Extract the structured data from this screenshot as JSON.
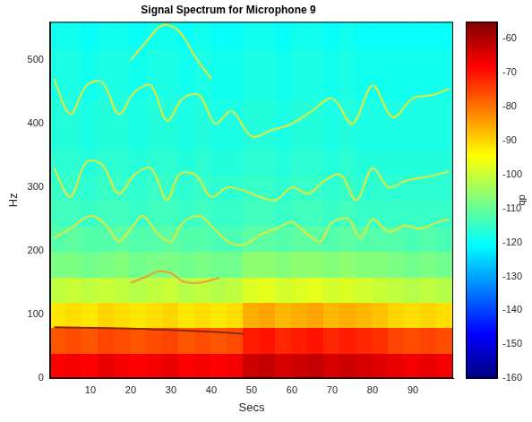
{
  "chart_data": {
    "type": "heatmap",
    "title": "Signal Spectrum for Microphone 9",
    "x_label": "Secs",
    "y_label": "Hz",
    "xlim": [
      0,
      100
    ],
    "xticks": [
      10,
      20,
      30,
      40,
      50,
      60,
      70,
      80,
      90
    ],
    "ylim": [
      0,
      560
    ],
    "yticks": [
      0,
      100,
      200,
      300,
      400,
      500
    ],
    "grid": false,
    "heatmap": {
      "x_edges": [
        0,
        4,
        8,
        12,
        16,
        20,
        24,
        28,
        32,
        36,
        40,
        44,
        48,
        52,
        56,
        60,
        64,
        68,
        72,
        76,
        80,
        84,
        88,
        92,
        96,
        100
      ],
      "y_edges": [
        0,
        40,
        80,
        120,
        160,
        200,
        240,
        280,
        320,
        360,
        400,
        440,
        480,
        520,
        560
      ],
      "cells": [
        [
          -68,
          -67,
          -68,
          -66,
          -67,
          -68,
          -67,
          -66,
          -68,
          -67,
          -68,
          -67,
          -63,
          -62,
          -64,
          -63,
          -62,
          -64,
          -63,
          -64,
          -65,
          -66,
          -67,
          -66,
          -67
        ],
        [
          -77,
          -76,
          -77,
          -75,
          -76,
          -77,
          -76,
          -75,
          -77,
          -76,
          -77,
          -76,
          -71,
          -70,
          -72,
          -71,
          -70,
          -72,
          -71,
          -72,
          -73,
          -75,
          -76,
          -75,
          -76
        ],
        [
          -92,
          -91,
          -92,
          -90,
          -91,
          -92,
          -91,
          -90,
          -92,
          -91,
          -92,
          -91,
          -86,
          -85,
          -87,
          -86,
          -85,
          -87,
          -86,
          -87,
          -88,
          -90,
          -91,
          -90,
          -91
        ],
        [
          -101,
          -100,
          -101,
          -100,
          -101,
          -102,
          -101,
          -100,
          -102,
          -101,
          -102,
          -101,
          -98,
          -97,
          -99,
          -98,
          -97,
          -99,
          -98,
          -99,
          -100,
          -101,
          -102,
          -101,
          -102
        ],
        [
          -108,
          -108,
          -109,
          -108,
          -107,
          -109,
          -108,
          -108,
          -109,
          -108,
          -109,
          -109,
          -106,
          -106,
          -107,
          -106,
          -106,
          -107,
          -106,
          -107,
          -107,
          -108,
          -109,
          -108,
          -109
        ],
        [
          -112,
          -111,
          -112,
          -112,
          -111,
          -112,
          -112,
          -111,
          -112,
          -112,
          -113,
          -113,
          -111,
          -111,
          -112,
          -111,
          -111,
          -112,
          -111,
          -112,
          -112,
          -112,
          -113,
          -112,
          -113
        ],
        [
          -114,
          -114,
          -115,
          -114,
          -114,
          -115,
          -114,
          -114,
          -115,
          -114,
          -115,
          -115,
          -114,
          -114,
          -115,
          -114,
          -114,
          -115,
          -114,
          -115,
          -115,
          -115,
          -115,
          -115,
          -115
        ],
        [
          -115,
          -115,
          -116,
          -115,
          -115,
          -116,
          -115,
          -115,
          -116,
          -115,
          -116,
          -116,
          -115,
          -115,
          -116,
          -115,
          -115,
          -116,
          -115,
          -116,
          -116,
          -116,
          -116,
          -116,
          -116
        ],
        [
          -116,
          -116,
          -117,
          -116,
          -116,
          -117,
          -116,
          -116,
          -117,
          -116,
          -117,
          -117,
          -116,
          -116,
          -117,
          -116,
          -116,
          -117,
          -116,
          -117,
          -117,
          -117,
          -117,
          -117,
          -117
        ],
        [
          -117,
          -117,
          -118,
          -117,
          -117,
          -118,
          -117,
          -117,
          -118,
          -117,
          -118,
          -118,
          -117,
          -117,
          -118,
          -117,
          -117,
          -118,
          -117,
          -118,
          -118,
          -118,
          -118,
          -118,
          -118
        ],
        [
          -117,
          -117,
          -118,
          -117,
          -117,
          -118,
          -117,
          -117,
          -118,
          -117,
          -118,
          -118,
          -117,
          -117,
          -118,
          -117,
          -117,
          -118,
          -117,
          -118,
          -118,
          -118,
          -118,
          -118,
          -118
        ],
        [
          -118,
          -118,
          -119,
          -118,
          -118,
          -119,
          -118,
          -118,
          -119,
          -118,
          -119,
          -119,
          -118,
          -118,
          -119,
          -118,
          -118,
          -119,
          -118,
          -119,
          -119,
          -119,
          -119,
          -119,
          -119
        ],
        [
          -118,
          -118,
          -119,
          -118,
          -118,
          -119,
          -118,
          -118,
          -119,
          -118,
          -119,
          -119,
          -118,
          -118,
          -119,
          -118,
          -118,
          -119,
          -118,
          -119,
          -119,
          -119,
          -119,
          -119,
          -119
        ],
        [
          -119,
          -119,
          -120,
          -119,
          -119,
          -120,
          -119,
          -119,
          -120,
          -119,
          -120,
          -120,
          -119,
          -119,
          -120,
          -119,
          -119,
          -120,
          -119,
          -120,
          -120,
          -120,
          -120,
          -120,
          -120
        ]
      ],
      "color_range": [
        -160,
        -55
      ],
      "color_ticks": [
        -160,
        -150,
        -140,
        -130,
        -120,
        -110,
        -100,
        -90,
        -80,
        -70,
        -60
      ],
      "color_label": "db"
    },
    "series": [
      {
        "type": "line",
        "color": "#e4e63c",
        "x": [
          1,
          5,
          10,
          14,
          17,
          20,
          23,
          27,
          30,
          33,
          37,
          40,
          44,
          48,
          52,
          56,
          60,
          64,
          67,
          70,
          74,
          77,
          80,
          84,
          88,
          92,
          96,
          99
        ],
        "values": [
          220,
          235,
          255,
          240,
          215,
          235,
          255,
          225,
          215,
          245,
          255,
          240,
          215,
          210,
          225,
          235,
          245,
          225,
          215,
          245,
          250,
          220,
          250,
          230,
          240,
          235,
          245,
          250
        ]
      },
      {
        "type": "line",
        "color": "#e4e63c",
        "x": [
          1,
          5,
          9,
          13,
          17,
          21,
          25,
          29,
          32,
          36,
          40,
          44,
          48,
          52,
          56,
          60,
          64,
          68,
          72,
          76,
          80,
          84,
          88,
          92,
          96,
          99
        ],
        "values": [
          330,
          285,
          340,
          335,
          290,
          320,
          330,
          280,
          320,
          320,
          285,
          300,
          295,
          285,
          280,
          300,
          290,
          310,
          320,
          280,
          330,
          300,
          310,
          315,
          320,
          325
        ]
      },
      {
        "type": "line",
        "color": "#e4e63c",
        "x": [
          1,
          5,
          9,
          13,
          17,
          21,
          25,
          29,
          33,
          37,
          41,
          45,
          50,
          55,
          60,
          65,
          70,
          75,
          80,
          85,
          90,
          95,
          99
        ],
        "values": [
          470,
          415,
          460,
          465,
          415,
          450,
          460,
          405,
          440,
          445,
          400,
          420,
          380,
          390,
          400,
          420,
          440,
          400,
          460,
          410,
          440,
          445,
          455
        ]
      },
      {
        "type": "line",
        "color": "#f0a030",
        "x": [
          20,
          24,
          27,
          30,
          33,
          37,
          42
        ],
        "values": [
          150,
          160,
          168,
          165,
          152,
          150,
          158
        ]
      },
      {
        "type": "line",
        "color": "#8a2a10",
        "x": [
          1,
          20,
          40,
          48
        ],
        "values": [
          80,
          78,
          73,
          70
        ]
      },
      {
        "type": "line",
        "color": "#e4e63c",
        "x": [
          20,
          24,
          28,
          32,
          36,
          40
        ],
        "values": [
          500,
          530,
          555,
          545,
          505,
          470
        ]
      }
    ]
  }
}
